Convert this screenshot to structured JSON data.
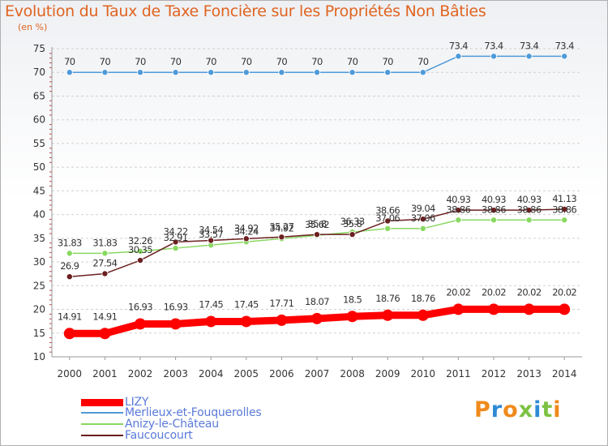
{
  "title": "Evolution du Taux de Taxe Foncière sur les Propriétés Non Bâties",
  "unit": "(en %)",
  "logo": {
    "text": "Proxiti",
    "colors": [
      "#f08a1c",
      "#2f8ad6",
      "#f08a1c",
      "#7cc242",
      "#2f8ad6",
      "#7cc242",
      "#f08a1c"
    ]
  },
  "chart_data": {
    "type": "line",
    "title": "Evolution du Taux de Taxe Foncière sur les Propriétés Non Bâties",
    "ylabel": "(en %)",
    "xlabel": "",
    "ylim": [
      10,
      75
    ],
    "yticks": [
      10,
      15,
      20,
      25,
      30,
      35,
      40,
      45,
      50,
      55,
      60,
      65,
      70,
      75
    ],
    "x": [
      "2000",
      "2001",
      "2002",
      "2003",
      "2004",
      "2005",
      "2006",
      "2007",
      "2008",
      "2009",
      "2010",
      "2011",
      "2012",
      "2013",
      "2014"
    ],
    "grid": true,
    "legend_position": "bottom-left",
    "series": [
      {
        "name": "LIZY",
        "color": "#ff0000",
        "style": "thick",
        "values": [
          14.91,
          14.91,
          16.93,
          16.93,
          17.45,
          17.45,
          17.71,
          18.07,
          18.5,
          18.76,
          18.76,
          20.02,
          20.02,
          20.02,
          20.02
        ],
        "labels": [
          "14.91",
          "14.91",
          "16.93",
          "16.93",
          "17.45",
          "17.45",
          "17.71",
          "18.07",
          "18.5",
          "18.76",
          "18.76",
          "20.02",
          "20.02",
          "20.02",
          "20.02"
        ]
      },
      {
        "name": "Merlieux-et-Fouquerolles",
        "color": "#4e9ad8",
        "style": "thin",
        "values": [
          70,
          70,
          70,
          70,
          70,
          70,
          70,
          70,
          70,
          70,
          70,
          73.4,
          73.4,
          73.4,
          73.4
        ],
        "labels": [
          "70",
          "70",
          "70",
          "70",
          "70",
          "70",
          "70",
          "70",
          "70",
          "70",
          "70",
          "73.4",
          "73.4",
          "73.4",
          "73.4"
        ]
      },
      {
        "name": "Anizy-le-Château",
        "color": "#88d860",
        "style": "thin",
        "values": [
          31.83,
          31.83,
          32.26,
          32.91,
          33.57,
          34.24,
          34.92,
          35.62,
          36.33,
          37.06,
          37.06,
          38.86,
          38.86,
          38.86,
          38.86
        ],
        "labels": [
          "31.83",
          "31.83",
          "32.26",
          "32.91",
          "33.57",
          "34.24",
          "34.92",
          "35.62",
          "36.33",
          "37.06",
          "37.06",
          "38.86",
          "38.86",
          "38.86",
          "38.86"
        ]
      },
      {
        "name": "Faucoucourt",
        "color": "#6b1f1f",
        "style": "thin",
        "values": [
          26.9,
          27.54,
          30.35,
          34.22,
          34.54,
          34.92,
          35.27,
          35.8,
          35.8,
          38.66,
          39.04,
          40.93,
          40.93,
          40.93,
          41.13
        ],
        "labels": [
          "26.9",
          "27.54",
          "30.35",
          "34.22",
          "34.54",
          "34.92",
          "35.27",
          "35.8",
          "35.8",
          "38.66",
          "39.04",
          "40.93",
          "40.93",
          "40.93",
          "41.13"
        ]
      }
    ]
  }
}
